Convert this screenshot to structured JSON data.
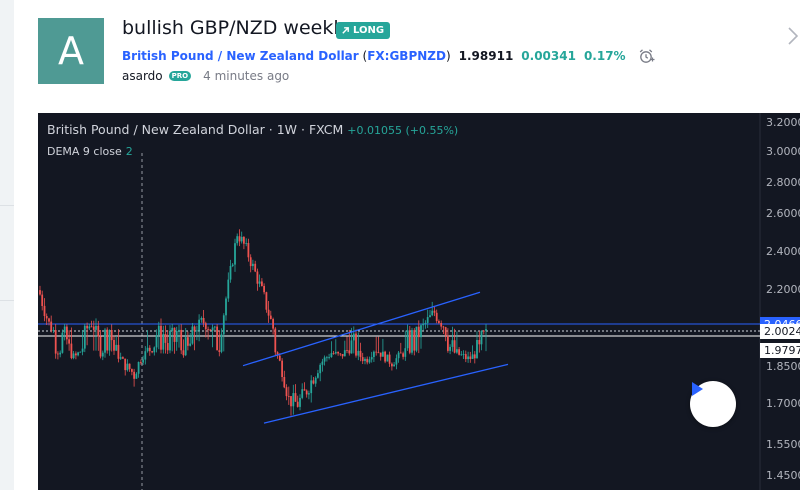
{
  "idea": {
    "avatar_letter": "A",
    "title": "bullish GBP/NZD weekly",
    "badge": "LONG",
    "symbol_name": "British Pound / New Zealand Dollar",
    "symbol_code": "FX:GBPNZD",
    "price": "1.98911",
    "change": "0.00341",
    "change_pct": "0.17%",
    "author": "asardo",
    "author_badge": "PRO",
    "time": "4 minutes ago"
  },
  "chart": {
    "legend_symbol": "British Pound / New Zealand Dollar",
    "legend_interval": "1W",
    "legend_source": "FXCM",
    "legend_change": "+0.01055 (+0.55%)",
    "indicator_name": "DEMA 9 close",
    "indicator_value": "2",
    "axis_labels": [
      "3.2000",
      "3.0000",
      "2.8000",
      "2.6000",
      "2.4000",
      "2.2000",
      "1.8500",
      "1.7000",
      "1.5500",
      "1.4500"
    ],
    "price_tags": [
      {
        "label": "2.0466",
        "bg": "#2962ff",
        "color": "#ffffff"
      },
      {
        "label": "2.0024",
        "bg": "#ffffff",
        "color": "#131722"
      },
      {
        "label": "1.9797",
        "bg": "#ffffff",
        "color": "#131722"
      }
    ],
    "colors": {
      "up": "#26a69a",
      "down": "#ef5350",
      "background": "#131722",
      "trendline": "#2962ff"
    }
  },
  "chart_data": {
    "type": "candlestick",
    "y_axis_ticks": [
      3.2,
      3.0,
      2.8,
      2.6,
      2.4,
      2.2,
      1.85,
      1.7,
      1.55,
      1.45
    ],
    "last_price": 2.0024,
    "horizontal_levels": [
      2.0466,
      1.9797
    ],
    "channel_upper": {
      "start": 1.86,
      "end": 2.19
    },
    "channel_lower": {
      "start": 1.63,
      "end": 1.87
    },
    "price_path": [
      2.18,
      2.05,
      1.97,
      2.0,
      1.92,
      1.99,
      2.05,
      1.96,
      2.02,
      1.95,
      1.86,
      1.82,
      1.94,
      1.99,
      2.01,
      1.98,
      2.0,
      1.96,
      2.01,
      2.06,
      2.01,
      1.99,
      2.24,
      2.5,
      2.42,
      2.3,
      2.18,
      2.05,
      1.88,
      1.72,
      1.7,
      1.75,
      1.82,
      1.9,
      1.96,
      1.93,
      1.99,
      1.95,
      1.9,
      1.99,
      1.94,
      1.88,
      1.94,
      1.98,
      2.0,
      2.05,
      2.1,
      2.04,
      1.97,
      1.94,
      1.91,
      1.96,
      1.99
    ]
  }
}
